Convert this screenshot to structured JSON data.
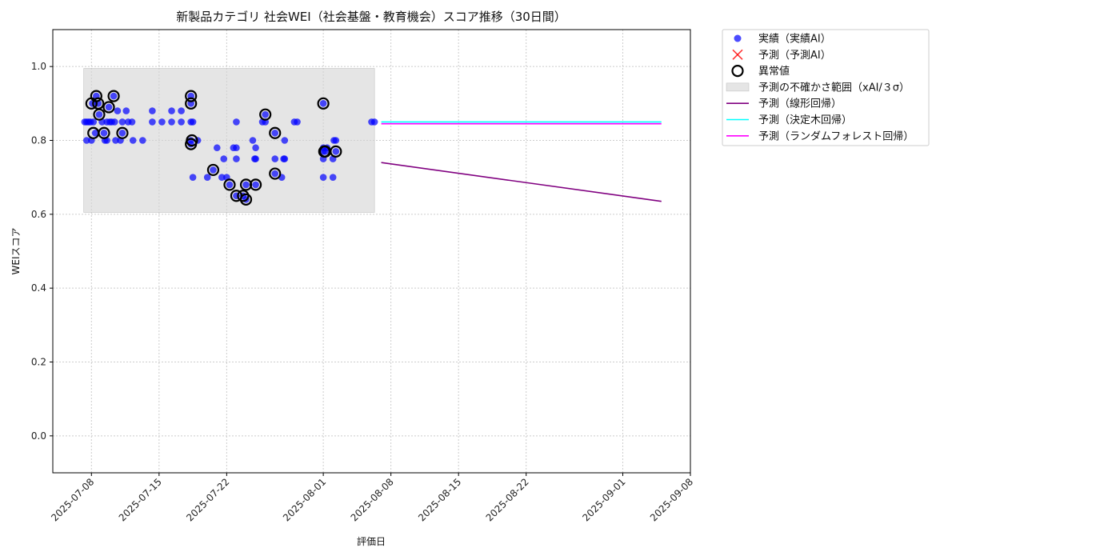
{
  "chart_data": {
    "type": "scatter",
    "title": "新製品カテゴリ 社会WEI（社会基盤・教育機会）スコア推移（30日間）",
    "xlabel": "評価日",
    "ylabel": "WEIスコア",
    "xlim": [
      "2025-07-04",
      "2025-09-08"
    ],
    "ylim": [
      -0.1,
      1.1
    ],
    "x_ticks": [
      "2025-07-08",
      "2025-07-15",
      "2025-07-22",
      "2025-08-01",
      "2025-08-08",
      "2025-08-15",
      "2025-08-22",
      "2025-09-01",
      "2025-09-08"
    ],
    "y_ticks": [
      0.0,
      0.2,
      0.4,
      0.6,
      0.8,
      1.0
    ],
    "y_tick_labels": [
      "0.0",
      "0.2",
      "0.4",
      "0.6",
      "0.8",
      "1.0"
    ],
    "grid": true,
    "legend_position": "outside-right",
    "uncertainty_band": {
      "x_start": "2025-07-07.2",
      "x_end": "2025-08-06.3",
      "y_min": 0.605,
      "y_max": 0.995,
      "color": "#d3d3d3"
    },
    "series": [
      {
        "name": "実績（実績AI）",
        "kind": "scatter",
        "color": "#0000ff",
        "points": [
          [
            "2025-07-07.3",
            0.85
          ],
          [
            "2025-07-07.5",
            0.85
          ],
          [
            "2025-07-07.7",
            0.85
          ],
          [
            "2025-07-07.9",
            0.85
          ],
          [
            "2025-07-07.5",
            0.8
          ],
          [
            "2025-07-08.0",
            0.8
          ],
          [
            "2025-07-08.1",
            0.9
          ],
          [
            "2025-07-08.2",
            0.85
          ],
          [
            "2025-07-08.4",
            0.82
          ],
          [
            "2025-07-08.5",
            0.92
          ],
          [
            "2025-07-08.7",
            0.9
          ],
          [
            "2025-07-08.8",
            0.87
          ],
          [
            "2025-07-09.1",
            0.85
          ],
          [
            "2025-07-09.3",
            0.82
          ],
          [
            "2025-07-09.4",
            0.8
          ],
          [
            "2025-07-09.6",
            0.8
          ],
          [
            "2025-07-09.6",
            0.85
          ],
          [
            "2025-07-09.8",
            0.89
          ],
          [
            "2025-07-09.9",
            0.85
          ],
          [
            "2025-07-10.1",
            0.85
          ],
          [
            "2025-07-10.3",
            0.92
          ],
          [
            "2025-07-10.4",
            0.85
          ],
          [
            "2025-07-10.5",
            0.8
          ],
          [
            "2025-07-10.7",
            0.88
          ],
          [
            "2025-07-11.0",
            0.8
          ],
          [
            "2025-07-11.2",
            0.82
          ],
          [
            "2025-07-11.2",
            0.85
          ],
          [
            "2025-07-11.6",
            0.88
          ],
          [
            "2025-07-11.8",
            0.85
          ],
          [
            "2025-07-12.2",
            0.85
          ],
          [
            "2025-07-12.3",
            0.8
          ],
          [
            "2025-07-13.3",
            0.8
          ],
          [
            "2025-07-14.3",
            0.88
          ],
          [
            "2025-07-14.3",
            0.85
          ],
          [
            "2025-07-15.3",
            0.85
          ],
          [
            "2025-07-16.3",
            0.88
          ],
          [
            "2025-07-16.3",
            0.85
          ],
          [
            "2025-07-17.3",
            0.88
          ],
          [
            "2025-07-17.3",
            0.85
          ],
          [
            "2025-07-18.3",
            0.92
          ],
          [
            "2025-07-18.3",
            0.9
          ],
          [
            "2025-07-18.3",
            0.85
          ],
          [
            "2025-07-18.3",
            0.8
          ],
          [
            "2025-07-18.3",
            0.79
          ],
          [
            "2025-07-18.5",
            0.85
          ],
          [
            "2025-07-18.5",
            0.7
          ],
          [
            "2025-07-19.0",
            0.8
          ],
          [
            "2025-07-20.0",
            0.7
          ],
          [
            "2025-07-20.6",
            0.72
          ],
          [
            "2025-07-21.0",
            0.78
          ],
          [
            "2025-07-21.5",
            0.7
          ],
          [
            "2025-07-21.7",
            0.75
          ],
          [
            "2025-07-22.0",
            0.7
          ],
          [
            "2025-07-22.3",
            0.68
          ],
          [
            "2025-07-22.7",
            0.78
          ],
          [
            "2025-07-23.0",
            0.85
          ],
          [
            "2025-07-23.0",
            0.78
          ],
          [
            "2025-07-23.0",
            0.75
          ],
          [
            "2025-07-23.0",
            0.65
          ],
          [
            "2025-07-23.7",
            0.65
          ],
          [
            "2025-07-24.0",
            0.64
          ],
          [
            "2025-07-24.0",
            0.68
          ],
          [
            "2025-07-24.7",
            0.8
          ],
          [
            "2025-07-24.9",
            0.75
          ],
          [
            "2025-07-25.0",
            0.78
          ],
          [
            "2025-07-25.0",
            0.68
          ],
          [
            "2025-07-25.0",
            0.75
          ],
          [
            "2025-07-25.7",
            0.85
          ],
          [
            "2025-07-26.0",
            0.87
          ],
          [
            "2025-07-26.0",
            0.85
          ],
          [
            "2025-07-27.0",
            0.82
          ],
          [
            "2025-07-27.0",
            0.75
          ],
          [
            "2025-07-27.0",
            0.71
          ],
          [
            "2025-07-27.7",
            0.7
          ],
          [
            "2025-07-27.9",
            0.75
          ],
          [
            "2025-07-28.0",
            0.8
          ],
          [
            "2025-07-28.0",
            0.75
          ],
          [
            "2025-07-29.0",
            0.85
          ],
          [
            "2025-07-29.3",
            0.85
          ],
          [
            "2025-08-01.0",
            0.9
          ],
          [
            "2025-08-01.0",
            0.78
          ],
          [
            "2025-08-01.0",
            0.77
          ],
          [
            "2025-08-01.0",
            0.75
          ],
          [
            "2025-08-01.0",
            0.7
          ],
          [
            "2025-08-01.2",
            0.77
          ],
          [
            "2025-08-01.4",
            0.78
          ],
          [
            "2025-08-02.1",
            0.8
          ],
          [
            "2025-08-02.3",
            0.77
          ],
          [
            "2025-08-02.0",
            0.75
          ],
          [
            "2025-08-02.0",
            0.7
          ],
          [
            "2025-08-02.3",
            0.8
          ],
          [
            "2025-08-06.0",
            0.85
          ],
          [
            "2025-08-06.3",
            0.85
          ]
        ]
      },
      {
        "name": "予測（予測AI）",
        "kind": "scatter-x",
        "color": "#ff0000",
        "points": []
      },
      {
        "name": "異常値",
        "kind": "outlier-ring",
        "color": "#000000",
        "points": [
          [
            "2025-07-08.0",
            0.9
          ],
          [
            "2025-07-08.2",
            0.82
          ],
          [
            "2025-07-08.5",
            0.92
          ],
          [
            "2025-07-08.7",
            0.9
          ],
          [
            "2025-07-08.8",
            0.87
          ],
          [
            "2025-07-09.3",
            0.82
          ],
          [
            "2025-07-09.8",
            0.89
          ],
          [
            "2025-07-10.3",
            0.92
          ],
          [
            "2025-07-11.2",
            0.82
          ],
          [
            "2025-07-18.3",
            0.92
          ],
          [
            "2025-07-18.3",
            0.9
          ],
          [
            "2025-07-18.3",
            0.79
          ],
          [
            "2025-07-18.4",
            0.8
          ],
          [
            "2025-07-20.6",
            0.72
          ],
          [
            "2025-07-22.3",
            0.68
          ],
          [
            "2025-07-23.0",
            0.65
          ],
          [
            "2025-07-23.7",
            0.65
          ],
          [
            "2025-07-24.0",
            0.64
          ],
          [
            "2025-07-24.0",
            0.68
          ],
          [
            "2025-07-25.0",
            0.68
          ],
          [
            "2025-07-26.0",
            0.87
          ],
          [
            "2025-07-27.0",
            0.82
          ],
          [
            "2025-07-27.0",
            0.71
          ],
          [
            "2025-08-01.0",
            0.9
          ],
          [
            "2025-08-01.1",
            0.77
          ],
          [
            "2025-08-01.2",
            0.77
          ],
          [
            "2025-08-02.3",
            0.77
          ]
        ]
      },
      {
        "name": "予測の不確かさ範囲（xAI/３σ）",
        "kind": "band",
        "color": "#d3d3d3"
      },
      {
        "name": "予測（線形回帰）",
        "kind": "line",
        "color": "#800080",
        "points": [
          [
            "2025-08-07.0",
            0.74
          ],
          [
            "2025-09-05.0",
            0.635
          ]
        ]
      },
      {
        "name": "予測（決定木回帰）",
        "kind": "line",
        "color": "#00ffff",
        "points": [
          [
            "2025-08-07.0",
            0.85
          ],
          [
            "2025-09-05.0",
            0.85
          ]
        ]
      },
      {
        "name": "予測（ランダムフォレスト回帰）",
        "kind": "line",
        "color": "#ff00ff",
        "points": [
          [
            "2025-08-07.0",
            0.845
          ],
          [
            "2025-09-05.0",
            0.845
          ]
        ]
      }
    ]
  }
}
